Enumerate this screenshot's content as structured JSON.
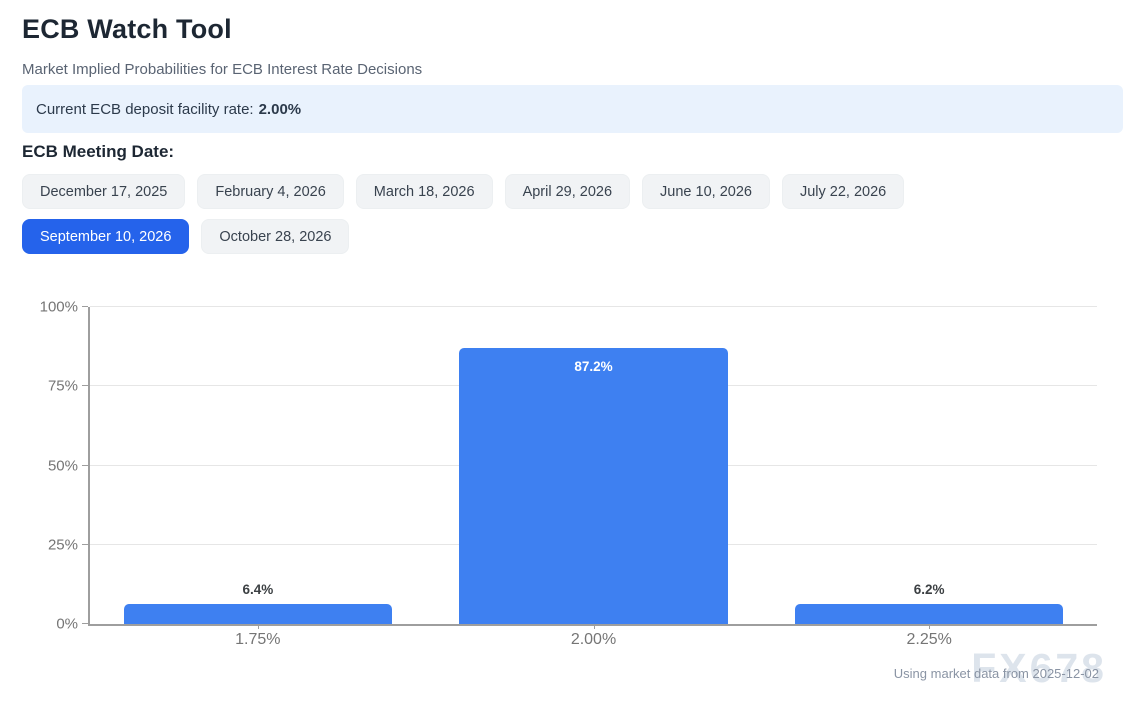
{
  "header": {
    "title": "ECB Watch Tool",
    "subtitle": "Market Implied Probabilities for ECB Interest Rate Decisions"
  },
  "banner": {
    "label": "Current ECB deposit facility rate:",
    "value": "2.00%"
  },
  "meetings": {
    "label": "ECB Meeting Date:",
    "selected": "September 10, 2026",
    "options": [
      "December 17, 2025",
      "February 4, 2026",
      "March 18, 2026",
      "April 29, 2026",
      "June 10, 2026",
      "July 22, 2026",
      "September 10, 2026",
      "October 28, 2026"
    ]
  },
  "chart_data": {
    "type": "bar",
    "title": "",
    "categories": [
      "1.75%",
      "2.00%",
      "2.25%"
    ],
    "values": [
      6.4,
      87.2,
      6.2
    ],
    "value_labels": [
      "6.4%",
      "87.2%",
      "6.2%"
    ],
    "xlabel": "",
    "ylabel": "",
    "ylim": [
      0,
      100
    ],
    "y_ticks": [
      0,
      25,
      50,
      75,
      100
    ],
    "y_tick_labels": [
      "0%",
      "25%",
      "50%",
      "75%",
      "100%"
    ],
    "grid": true,
    "legend_position": "none",
    "bar_color": "#3e80f1"
  },
  "footer": {
    "note": "Using market data from 2025-12-02",
    "watermark": "FX678"
  },
  "colors": {
    "accent": "#2563eb",
    "bar": "#3e80f1",
    "banner_bg": "#e9f2fd",
    "grid": "#e6e6e6",
    "axis": "#9e9e9e"
  }
}
